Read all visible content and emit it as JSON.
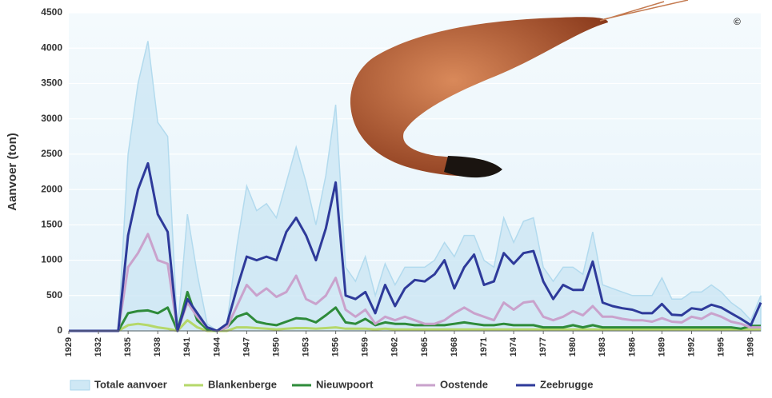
{
  "chart_data": {
    "type": "line",
    "y_label": "Aanvoer (ton)",
    "copyright": "©",
    "xlim": [
      1929,
      1999
    ],
    "xticks": [
      1929,
      1932,
      1935,
      1938,
      1941,
      1944,
      1947,
      1950,
      1953,
      1956,
      1959,
      1962,
      1965,
      1968,
      1971,
      1974,
      1977,
      1980,
      1983,
      1986,
      1989,
      1992,
      1995,
      1998
    ],
    "ylim": [
      0,
      4500
    ],
    "yticks": [
      0,
      500,
      1000,
      1500,
      2000,
      2500,
      3000,
      3500,
      4000,
      4500
    ],
    "grid": true,
    "x": [
      1929,
      1930,
      1931,
      1932,
      1933,
      1934,
      1935,
      1936,
      1937,
      1938,
      1939,
      1940,
      1941,
      1942,
      1943,
      1944,
      1945,
      1946,
      1947,
      1948,
      1949,
      1950,
      1951,
      1952,
      1953,
      1954,
      1955,
      1956,
      1957,
      1958,
      1959,
      1960,
      1961,
      1962,
      1963,
      1964,
      1965,
      1966,
      1967,
      1968,
      1969,
      1970,
      1971,
      1972,
      1973,
      1974,
      1975,
      1976,
      1977,
      1978,
      1979,
      1980,
      1981,
      1982,
      1983,
      1984,
      1985,
      1986,
      1987,
      1988,
      1989,
      1990,
      1991,
      1992,
      1993,
      1994,
      1995,
      1996,
      1997,
      1998,
      1999
    ],
    "series": [
      {
        "name": "Totale aanvoer",
        "color": "#a9d6ec",
        "fill": "#cfe8f5",
        "area": true,
        "values": [
          0,
          0,
          0,
          0,
          0,
          0,
          2500,
          3500,
          4100,
          2950,
          2750,
          0,
          1650,
          800,
          100,
          0,
          100,
          1200,
          2050,
          1700,
          1800,
          1600,
          2100,
          2600,
          2100,
          1500,
          2200,
          3200,
          900,
          700,
          1050,
          500,
          950,
          650,
          900,
          900,
          900,
          1000,
          1250,
          1050,
          1350,
          1350,
          1000,
          900,
          1600,
          1250,
          1550,
          1600,
          900,
          700,
          900,
          900,
          800,
          1400,
          650,
          600,
          550,
          500,
          500,
          500,
          750,
          450,
          450,
          550,
          550,
          650,
          550,
          400,
          300,
          150,
          500
        ]
      },
      {
        "name": "Blankenberge",
        "color": "#b5d86a",
        "values": [
          0,
          0,
          0,
          0,
          0,
          0,
          80,
          100,
          80,
          50,
          30,
          0,
          150,
          50,
          0,
          0,
          0,
          50,
          50,
          40,
          30,
          20,
          30,
          40,
          40,
          30,
          40,
          50,
          30,
          30,
          30,
          20,
          30,
          20,
          20,
          20,
          20,
          20,
          20,
          20,
          20,
          20,
          20,
          20,
          20,
          20,
          20,
          20,
          20,
          20,
          20,
          20,
          20,
          20,
          20,
          20,
          20,
          20,
          20,
          20,
          20,
          20,
          20,
          20,
          20,
          20,
          20,
          20,
          20,
          20,
          20
        ]
      },
      {
        "name": "Nieuwpoort",
        "color": "#2e8b3a",
        "values": [
          0,
          0,
          0,
          0,
          0,
          0,
          250,
          280,
          290,
          250,
          330,
          0,
          550,
          150,
          20,
          0,
          50,
          200,
          250,
          130,
          100,
          80,
          130,
          180,
          170,
          120,
          220,
          330,
          120,
          100,
          170,
          80,
          120,
          100,
          100,
          80,
          80,
          80,
          80,
          100,
          120,
          100,
          80,
          80,
          100,
          80,
          80,
          80,
          50,
          50,
          50,
          80,
          50,
          80,
          50,
          50,
          50,
          50,
          50,
          50,
          50,
          50,
          50,
          50,
          50,
          50,
          50,
          50,
          30,
          70,
          70
        ]
      },
      {
        "name": "Oostende",
        "color": "#c9a2cc",
        "values": [
          0,
          0,
          0,
          0,
          0,
          0,
          900,
          1100,
          1370,
          1000,
          950,
          0,
          400,
          200,
          50,
          0,
          50,
          350,
          650,
          500,
          600,
          480,
          550,
          780,
          450,
          380,
          500,
          750,
          300,
          200,
          300,
          100,
          200,
          150,
          200,
          150,
          100,
          100,
          150,
          250,
          330,
          250,
          200,
          150,
          400,
          300,
          400,
          420,
          200,
          150,
          200,
          280,
          220,
          350,
          200,
          200,
          170,
          150,
          150,
          130,
          180,
          130,
          120,
          200,
          170,
          250,
          200,
          130,
          100,
          50,
          50
        ]
      },
      {
        "name": "Zeebrugge",
        "color": "#2e3a9a",
        "values": [
          0,
          0,
          0,
          0,
          0,
          0,
          1350,
          2000,
          2370,
          1650,
          1400,
          0,
          450,
          250,
          50,
          0,
          100,
          600,
          1050,
          1000,
          1050,
          1000,
          1400,
          1600,
          1350,
          1000,
          1450,
          2100,
          500,
          450,
          550,
          250,
          650,
          350,
          600,
          720,
          700,
          800,
          1000,
          600,
          900,
          1080,
          650,
          700,
          1100,
          950,
          1100,
          1130,
          700,
          450,
          650,
          580,
          580,
          980,
          400,
          350,
          320,
          300,
          250,
          250,
          380,
          230,
          220,
          320,
          300,
          370,
          330,
          250,
          170,
          80,
          400
        ]
      }
    ]
  }
}
